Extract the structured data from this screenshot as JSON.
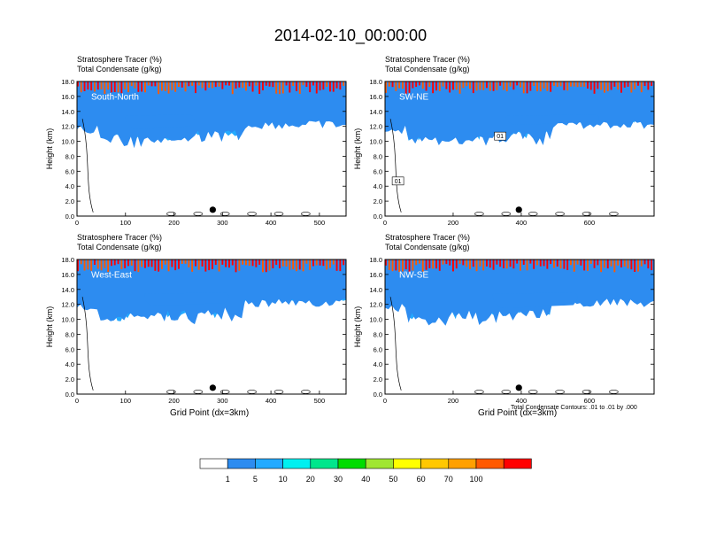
{
  "title": "2014-02-10_00:00:00",
  "panels": [
    {
      "line1": "Stratosphere Tracer   (%)",
      "line2": "Total Condensate   (g/kg)",
      "label": "South-North",
      "xticks": [
        "0",
        "100",
        "200",
        "300",
        "400",
        "500"
      ],
      "xvals": [
        0,
        100,
        200,
        300,
        400,
        500
      ],
      "xmax": 555,
      "marker_x": 280,
      "ylabel": "Height (km)",
      "xlabel": ""
    },
    {
      "line1": "Stratosphere Tracer   (%)",
      "line2": "Total Condensate   (g/kg)",
      "label": "SW-NE",
      "xticks": [
        "0",
        "200",
        "400",
        "600"
      ],
      "xvals": [
        0,
        200,
        400,
        600
      ],
      "xmax": 790,
      "marker_x": 393,
      "ylabel": "Height (km)",
      "xlabel": "",
      "contour_labels": [
        "01",
        "01"
      ]
    },
    {
      "line1": "Stratosphere Tracer   (%)",
      "line2": "Total Condensate   (g/kg)",
      "label": "West-East",
      "xticks": [
        "0",
        "100",
        "200",
        "300",
        "400",
        "500"
      ],
      "xvals": [
        0,
        100,
        200,
        300,
        400,
        500
      ],
      "xmax": 555,
      "marker_x": 280,
      "ylabel": "Height (km)",
      "xlabel": "Grid Point (dx=3km)"
    },
    {
      "line1": "Stratosphere Tracer   (%)",
      "line2": "Total Condensate   (g/kg)",
      "label": "NW-SE",
      "xticks": [
        "0",
        "200",
        "400",
        "600"
      ],
      "xvals": [
        0,
        200,
        400,
        600
      ],
      "xmax": 790,
      "marker_x": 393,
      "ylabel": "Height (km)",
      "xlabel": "Grid Point (dx=3km)",
      "note": "Total Condensate Contours: .01 to .01 by .000"
    }
  ],
  "yticks": [
    "0.0",
    "2.0",
    "4.0",
    "6.0",
    "8.0",
    "10.0",
    "12.0",
    "14.0",
    "16.0",
    "18.0"
  ],
  "legend": {
    "labels": [
      "1",
      "5",
      "10",
      "20",
      "30",
      "40",
      "50",
      "60",
      "70",
      "100"
    ],
    "colors": [
      "#ffffff",
      "#2d8cf0",
      "#23aaff",
      "#00f0f0",
      "#00e68c",
      "#00dc00",
      "#a0e632",
      "#ffff00",
      "#ffc800",
      "#ffa000",
      "#ff5a00",
      "#ff0000"
    ]
  },
  "chart_data": {
    "type": "heatmap",
    "title": "2014-02-10_00:00:00",
    "variables": [
      "Stratosphere Tracer (%)",
      "Total Condensate (g/kg)"
    ],
    "panels": [
      "South-North",
      "SW-NE",
      "West-East",
      "NW-SE"
    ],
    "ylabel": "Height (km)",
    "ylim": [
      0,
      18
    ],
    "xlabel": "Grid Point (dx=3km)",
    "color_levels": [
      1,
      5,
      10,
      20,
      30,
      40,
      50,
      60,
      70,
      100
    ],
    "contour_note": "Total Condensate Contours: .01 to .01 by .000"
  }
}
